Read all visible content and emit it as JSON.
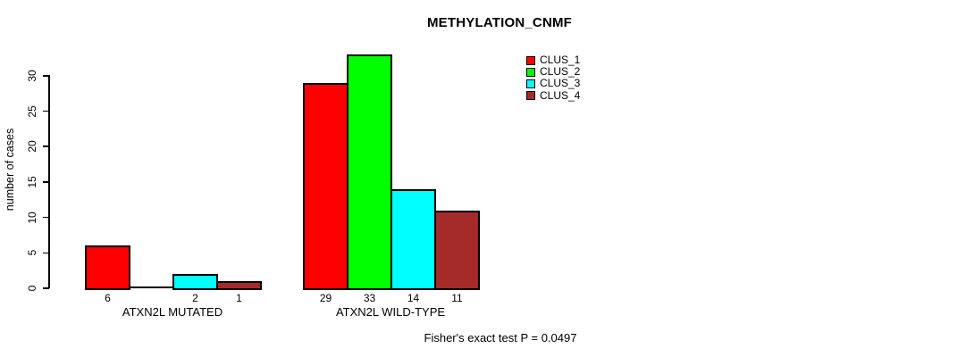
{
  "chart_data": {
    "type": "bar",
    "title": "METHYLATION_CNMF",
    "ylabel": "number of cases",
    "xlabel": "",
    "categories": [
      "ATXN2L MUTATED",
      "ATXN2L WILD-TYPE"
    ],
    "series": [
      {
        "name": "CLUS_1",
        "color": "#FF0000",
        "values": [
          6,
          29
        ]
      },
      {
        "name": "CLUS_2",
        "color": "#00FF00",
        "values": [
          0,
          33
        ]
      },
      {
        "name": "CLUS_3",
        "color": "#00FFFF",
        "values": [
          2,
          14
        ]
      },
      {
        "name": "CLUS_4",
        "color": "#A52A2A",
        "values": [
          1,
          11
        ]
      }
    ],
    "bar_value_labels_visible": true,
    "zero_value_labels_hidden": true,
    "yticks": [
      0,
      5,
      10,
      15,
      20,
      25,
      30
    ],
    "ylim": [
      0,
      33.6
    ],
    "grid": false,
    "legend_position": "inside-top-right",
    "annotation": "Fisher's exact test P = 0.0497"
  },
  "colors": {
    "background": "#FFFFFF",
    "axis": "#000000",
    "text": "#000000"
  }
}
